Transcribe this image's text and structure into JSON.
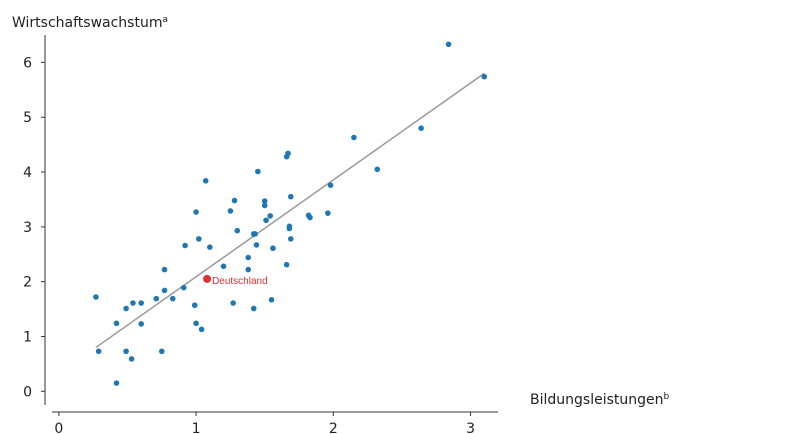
{
  "chart_data": {
    "type": "scatter",
    "title": "",
    "ylabel": "Wirtschaftswachstum",
    "ylabel_superscript": "a",
    "xlabel": "Bildungsleistungen",
    "xlabel_superscript": "b",
    "xlim": [
      -0.05,
      3.2
    ],
    "ylim": [
      -0.25,
      6.5
    ],
    "x_ticks": [
      0,
      1,
      2,
      3
    ],
    "y_ticks": [
      0,
      1,
      2,
      3,
      4,
      5,
      6
    ],
    "grid": false,
    "legend": "none",
    "colors": {
      "points": "#1f77b4",
      "highlight": "#e03030",
      "trendline": "#999999",
      "axis": "#333333"
    },
    "trendline": {
      "x": [
        0.27,
        3.1
      ],
      "y": [
        0.8,
        5.8
      ]
    },
    "highlight": {
      "x": 1.08,
      "y": 2.05,
      "label": "Deutschland"
    },
    "series": [
      {
        "points": [
          [
            0.27,
            1.72
          ],
          [
            0.29,
            0.73
          ],
          [
            0.42,
            0.15
          ],
          [
            0.42,
            1.24
          ],
          [
            0.49,
            1.51
          ],
          [
            0.49,
            0.73
          ],
          [
            0.53,
            0.59
          ],
          [
            0.54,
            1.61
          ],
          [
            0.6,
            1.23
          ],
          [
            0.6,
            1.61
          ],
          [
            0.71,
            1.69
          ],
          [
            0.75,
            0.73
          ],
          [
            0.77,
            2.22
          ],
          [
            0.77,
            1.84
          ],
          [
            0.83,
            1.69
          ],
          [
            0.91,
            1.89
          ],
          [
            0.92,
            2.66
          ],
          [
            0.99,
            1.57
          ],
          [
            1.0,
            3.27
          ],
          [
            1.0,
            1.24
          ],
          [
            1.02,
            2.78
          ],
          [
            1.04,
            1.13
          ],
          [
            1.07,
            3.84
          ],
          [
            1.1,
            2.63
          ],
          [
            1.2,
            2.28
          ],
          [
            1.25,
            3.29
          ],
          [
            1.27,
            1.61
          ],
          [
            1.28,
            3.48
          ],
          [
            1.3,
            2.93
          ],
          [
            1.38,
            2.22
          ],
          [
            1.38,
            2.44
          ],
          [
            1.42,
            2.87
          ],
          [
            1.42,
            1.51
          ],
          [
            1.43,
            2.87
          ],
          [
            1.44,
            2.67
          ],
          [
            1.45,
            4.01
          ],
          [
            1.5,
            3.39
          ],
          [
            1.5,
            3.47
          ],
          [
            1.51,
            3.12
          ],
          [
            1.54,
            3.2
          ],
          [
            1.55,
            1.67
          ],
          [
            1.56,
            2.61
          ],
          [
            1.66,
            4.28
          ],
          [
            1.66,
            2.31
          ],
          [
            1.67,
            4.34
          ],
          [
            1.68,
            3.01
          ],
          [
            1.68,
            2.97
          ],
          [
            1.69,
            2.78
          ],
          [
            1.69,
            3.55
          ],
          [
            1.82,
            3.21
          ],
          [
            1.83,
            3.17
          ],
          [
            1.96,
            3.25
          ],
          [
            1.98,
            3.76
          ],
          [
            2.15,
            4.63
          ],
          [
            2.32,
            4.05
          ],
          [
            2.64,
            4.8
          ],
          [
            2.84,
            6.33
          ],
          [
            3.1,
            5.74
          ]
        ]
      }
    ]
  }
}
